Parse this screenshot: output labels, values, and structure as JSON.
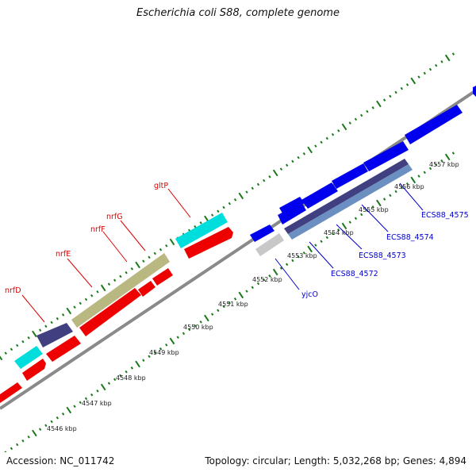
{
  "title": "Escherichia coli S88, complete genome",
  "footer": {
    "accession": "Accession: NC_011742",
    "topology": "Topology: circular;",
    "length": "Length: 5,032,268 bp;",
    "genes": "Genes: 4,894"
  },
  "ticks": [
    {
      "label": "4546 kbp",
      "pos": 4546
    },
    {
      "label": "4547 kbp",
      "pos": 4547
    },
    {
      "label": "4548 kbp",
      "pos": 4548
    },
    {
      "label": "4549 kbp",
      "pos": 4549
    },
    {
      "label": "4550 kbp",
      "pos": 4550
    },
    {
      "label": "4551 kbp",
      "pos": 4551
    },
    {
      "label": "4552 kbp",
      "pos": 4552
    },
    {
      "label": "4553 kbp",
      "pos": 4553
    },
    {
      "label": "4554 kbp",
      "pos": 4554
    },
    {
      "label": "4555 kbp",
      "pos": 4555
    },
    {
      "label": "4556 kbp",
      "pos": 4556
    },
    {
      "label": "4557 kbp",
      "pos": 4557
    }
  ],
  "gene_labels": [
    {
      "name": "nrfD",
      "color": "#dd0000"
    },
    {
      "name": "nrfE",
      "color": "#dd0000"
    },
    {
      "name": "nrfF",
      "color": "#dd0000"
    },
    {
      "name": "nrfG",
      "color": "#dd0000"
    },
    {
      "name": "gltP",
      "color": "#dd0000"
    },
    {
      "name": "yjcO",
      "color": "#0000cc"
    },
    {
      "name": "ECS88_4572",
      "color": "#0000cc"
    },
    {
      "name": "ECS88_4573",
      "color": "#0000cc"
    },
    {
      "name": "ECS88_4574",
      "color": "#0000cc"
    },
    {
      "name": "ECS88_4575",
      "color": "#0000cc"
    }
  ],
  "feature_colors": {
    "cds_forward": "#0000ee",
    "cds_reverse": "#ee0000",
    "trna": "#00dddd",
    "olive": "#b8b880",
    "navy": "#404080",
    "steel": "#6a8fc0",
    "misc": "#c8c8c8",
    "backbone": "#8a8a8a",
    "tick": "#1a7a1a"
  }
}
